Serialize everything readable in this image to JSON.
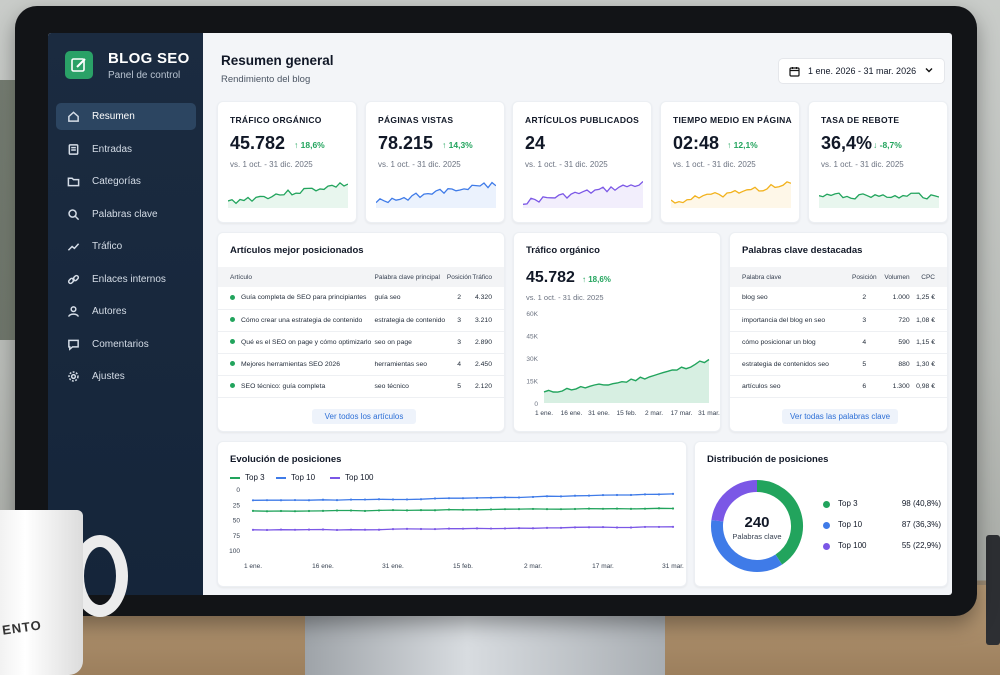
{
  "app": {
    "brand": "BLOG SEO",
    "brand_sub": "Panel de control"
  },
  "colors": {
    "green": "#22a45d",
    "blue": "#3f7be8",
    "purple": "#7b57e6",
    "amber": "#f2b21d",
    "sidebar": "#1b2b40",
    "active": "#2c4561"
  },
  "sidebar": {
    "items": [
      {
        "label": "Resumen",
        "icon": "home-icon",
        "active": true
      },
      {
        "label": "Entradas",
        "icon": "document-icon"
      },
      {
        "label": "Categorías",
        "icon": "folder-icon"
      },
      {
        "label": "Palabras clave",
        "icon": "search-icon"
      },
      {
        "label": "Tráfico",
        "icon": "trend-icon"
      },
      {
        "label": "Enlaces internos",
        "icon": "link-icon"
      },
      {
        "label": "Autores",
        "icon": "user-icon"
      },
      {
        "label": "Comentarios",
        "icon": "comment-icon"
      },
      {
        "label": "Ajustes",
        "icon": "gear-icon"
      }
    ]
  },
  "header": {
    "title": "Resumen general",
    "subtitle": "Rendimiento del blog",
    "date_range": "1 ene. 2026 - 31 mar. 2026"
  },
  "kpis": [
    {
      "title": "TRÁFICO ORGÁNICO",
      "value": "45.782",
      "delta": "18,6%",
      "up": true,
      "period": "vs. 1 oct. - 31 dic. 2025",
      "color": "#22a45d"
    },
    {
      "title": "PÁGINAS VISTAS",
      "value": "78.215",
      "delta": "14,3%",
      "up": true,
      "period": "vs. 1 oct. - 31 dic. 2025",
      "color": "#3f7be8"
    },
    {
      "title": "ARTÍCULOS PUBLICADOS",
      "value": "24",
      "delta": "",
      "up": true,
      "period": "vs. 1 oct. - 31 dic. 2025",
      "color": "#7b57e6"
    },
    {
      "title": "TIEMPO MEDIO EN PÁGINA",
      "value": "02:48",
      "delta": "12,1%",
      "up": true,
      "period": "vs. 1 oct. - 31 dic. 2025",
      "color": "#f2b21d"
    },
    {
      "title": "TASA DE REBOTE",
      "value": "36,4%",
      "delta": "-8,7%",
      "up": false,
      "period": "vs. 1 oct. - 31 dic. 2025",
      "color": "#22a45d"
    }
  ],
  "top_articles": {
    "title": "Artículos mejor posicionados",
    "columns": [
      "Artículo",
      "Palabra clave principal",
      "Posición",
      "Tráfico"
    ],
    "rows": [
      [
        "Guía completa de SEO para principiantes",
        "guía seo",
        "2",
        "4.320"
      ],
      [
        "Cómo crear una estrategia de contenido",
        "estrategia de contenido",
        "3",
        "3.210"
      ],
      [
        "Qué es el SEO on page y cómo optimizarlo",
        "seo on page",
        "3",
        "2.890"
      ],
      [
        "Mejores herramientas SEO 2026",
        "herramientas seo",
        "4",
        "2.450"
      ],
      [
        "SEO técnico: guía completa",
        "seo técnico",
        "5",
        "2.120"
      ]
    ],
    "link": "Ver todos los artículos"
  },
  "traffic_card": {
    "title": "Tráfico orgánico",
    "value": "45.782",
    "delta": "18,6%",
    "period": "vs. 1 oct. - 31 dic. 2025"
  },
  "keywords": {
    "title": "Palabras clave destacadas",
    "columns": [
      "Palabra clave",
      "Posición",
      "Volumen",
      "CPC"
    ],
    "rows": [
      [
        "blog seo",
        "2",
        "1.000",
        "1,25 €"
      ],
      [
        "importancia del blog en seo",
        "3",
        "720",
        "1,08 €"
      ],
      [
        "cómo posicionar un blog",
        "4",
        "590",
        "1,15 €"
      ],
      [
        "estrategia de contenidos seo",
        "5",
        "880",
        "1,30 €"
      ],
      [
        "artículos seo",
        "6",
        "1.300",
        "0,98 €"
      ]
    ],
    "link": "Ver todas las palabras clave"
  },
  "positions": {
    "title": "Evolución de posiciones"
  },
  "distribution": {
    "title": "Distribución de posiciones",
    "total": "240",
    "total_label": "Palabras clave",
    "rows": [
      {
        "label": "Top 3",
        "value": "98 (40,8%)",
        "pct": 40.8,
        "color": "#22a45d"
      },
      {
        "label": "Top 10",
        "value": "87 (36,3%)",
        "pct": 36.3,
        "color": "#3f7be8"
      },
      {
        "label": "Top 100",
        "value": "55 (22,9%)",
        "pct": 22.9,
        "color": "#7b57e6"
      }
    ]
  },
  "chart_data": [
    {
      "type": "area",
      "x": [
        "1 ene.",
        "16 ene.",
        "31 ene.",
        "15 feb.",
        "2 mar.",
        "17 mar.",
        "31 mar."
      ],
      "series": [
        {
          "values": [
            7000,
            9500,
            11500,
            14500,
            18500,
            23000,
            29000
          ]
        }
      ],
      "ylim": [
        0,
        60000
      ],
      "yticks": [
        "0",
        "15K",
        "30K",
        "45K",
        "60K"
      ]
    },
    {
      "type": "line",
      "x": [
        "1 ene.",
        "16 ene.",
        "31 ene.",
        "15 feb.",
        "2 mar.",
        "17 mar.",
        "31 mar."
      ],
      "series": [
        {
          "name": "Top 3",
          "values": [
            36,
            36,
            35,
            34,
            33,
            32,
            32
          ]
        },
        {
          "name": "Top 10",
          "values": [
            18,
            18,
            17,
            15,
            13,
            10,
            8
          ]
        },
        {
          "name": "Top 100",
          "values": [
            67,
            67,
            66,
            65,
            64,
            63,
            62
          ]
        }
      ],
      "ylim": [
        0,
        100
      ],
      "yticks": [
        "0",
        "25",
        "50",
        "75",
        "100"
      ],
      "reversed": true
    },
    {
      "type": "pie",
      "categories": [
        "Top 3",
        "Top 10",
        "Top 100"
      ],
      "values": [
        98,
        87,
        55
      ]
    }
  ]
}
